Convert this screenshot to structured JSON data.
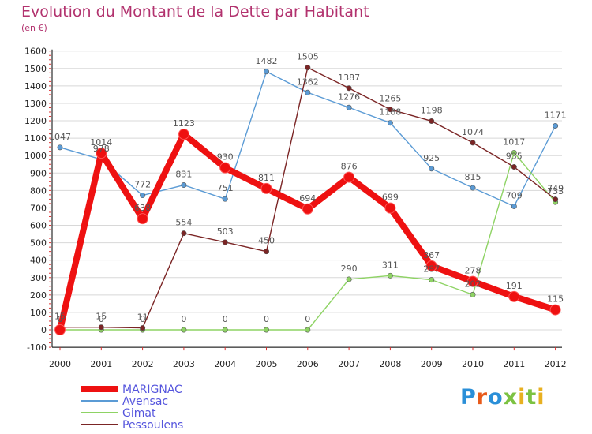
{
  "header": {
    "title": "Evolution du Montant de la Dette par Habitant",
    "unit": "(en €)"
  },
  "logo": {
    "text": "Proxiti",
    "letter_colors": [
      "#2a8fd8",
      "#e85a1a",
      "#2a8fd8",
      "#7cc242",
      "#e8b020",
      "#7cc242",
      "#e8b020"
    ]
  },
  "colors": {
    "title": "#b2326e",
    "legend_text": "#5555dd",
    "axis_text": "#222222",
    "grid": "#d8d8d8",
    "tick_red": "#e03030"
  },
  "chart_data": {
    "type": "line",
    "title": "Evolution du Montant de la Dette par Habitant",
    "ylabel": "(en €)",
    "xlabel": "",
    "x": [
      "2000",
      "2001",
      "2002",
      "2003",
      "2004",
      "2005",
      "2006",
      "2007",
      "2008",
      "2009",
      "2010",
      "2011",
      "2012"
    ],
    "ylim": [
      -100,
      1600
    ],
    "yticks": [
      -100,
      0,
      100,
      200,
      300,
      400,
      500,
      600,
      700,
      800,
      900,
      1000,
      1100,
      1200,
      1300,
      1400,
      1500,
      1600
    ],
    "grid": "horizontal",
    "legend_position": "bottom-left",
    "series": [
      {
        "name": "Avensac",
        "color": "#5b9bd5",
        "values": [
          1047,
          978,
          772,
          831,
          751,
          1482,
          1362,
          1276,
          1188,
          925,
          815,
          709,
          1171
        ]
      },
      {
        "name": "Gimat",
        "color": "#8ed364",
        "values": [
          0,
          0,
          0,
          0,
          0,
          0,
          0,
          290,
          311,
          287,
          202,
          1017,
          733
        ]
      },
      {
        "name": "Pessoulens",
        "color": "#7b2525",
        "values": [
          15,
          15,
          11,
          554,
          503,
          450,
          1505,
          1387,
          1265,
          1198,
          1074,
          935,
          749
        ]
      },
      {
        "name": "MARIGNAC",
        "color": "#ee1111",
        "values": [
          0,
          1014,
          638,
          1123,
          930,
          811,
          694,
          876,
          699,
          367,
          278,
          191,
          115
        ]
      }
    ]
  }
}
